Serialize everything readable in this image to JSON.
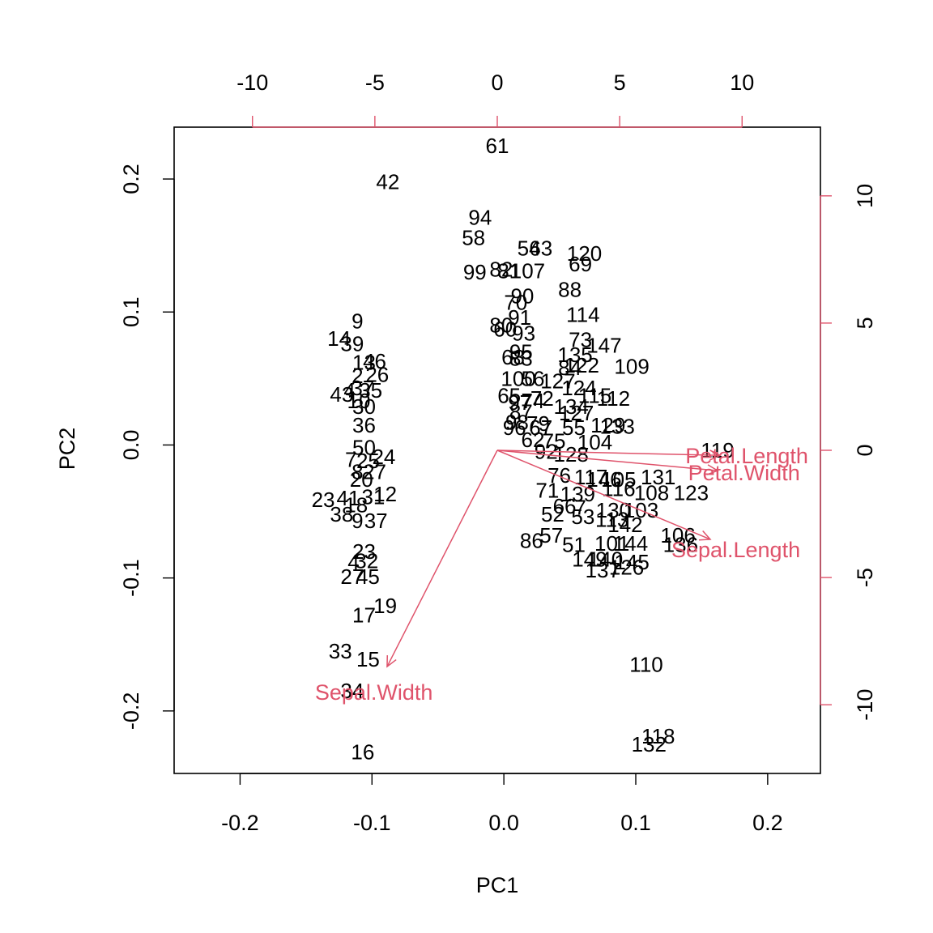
{
  "chart_data": {
    "type": "scatter",
    "subtype": "PCA biplot",
    "xlabel": "PC1",
    "ylabel": "PC2",
    "xlim": [
      -0.25,
      0.24
    ],
    "ylim": [
      -0.247,
      0.239
    ],
    "x_ticks": [
      -0.2,
      -0.1,
      0.0,
      0.1,
      0.2
    ],
    "x_tick_labels": [
      "-0.2",
      "-0.1",
      "0.0",
      "0.1",
      "0.2"
    ],
    "y_ticks": [
      -0.2,
      -0.1,
      0.0,
      0.1,
      0.2
    ],
    "y_tick_labels": [
      "-0.2",
      "-0.1",
      "0.0",
      "0.1",
      "0.2"
    ],
    "top_axis": {
      "ticks": [
        -10,
        -5,
        0,
        5,
        10
      ],
      "tick_labels": [
        "-10",
        "-5",
        "0",
        "5",
        "10"
      ],
      "range": [
        -13.2,
        13.2
      ]
    },
    "right_axis": {
      "ticks": [
        -10,
        -5,
        0,
        5,
        10
      ],
      "tick_labels": [
        "-10",
        "-5",
        "0",
        "5",
        "10"
      ],
      "range": [
        -12.7,
        12.7
      ]
    },
    "variable_color": "#DF536B",
    "observation_color": "#000000",
    "variables": [
      {
        "name": "Petal.Length",
        "x": 9.1,
        "y": -0.2
      },
      {
        "name": "Petal.Width",
        "x": 9.0,
        "y": -0.8
      },
      {
        "name": "Sepal.Length",
        "x": 8.7,
        "y": -3.5
      },
      {
        "name": "Sepal.Width",
        "x": -4.5,
        "y": -8.5
      }
    ],
    "observations": [
      {
        "label": "61",
        "x": -0.005,
        "y": 0.225
      },
      {
        "label": "42",
        "x": -0.088,
        "y": 0.198
      },
      {
        "label": "94",
        "x": -0.018,
        "y": 0.171
      },
      {
        "label": "58",
        "x": -0.023,
        "y": 0.156
      },
      {
        "label": "54",
        "x": 0.019,
        "y": 0.148
      },
      {
        "label": "63",
        "x": 0.028,
        "y": 0.148
      },
      {
        "label": "120",
        "x": 0.061,
        "y": 0.144
      },
      {
        "label": "69",
        "x": 0.058,
        "y": 0.136
      },
      {
        "label": "99",
        "x": -0.022,
        "y": 0.13
      },
      {
        "label": "82",
        "x": -0.002,
        "y": 0.132
      },
      {
        "label": "81",
        "x": 0.004,
        "y": 0.131
      },
      {
        "label": "107",
        "x": 0.018,
        "y": 0.131
      },
      {
        "label": "88",
        "x": 0.05,
        "y": 0.117
      },
      {
        "label": "90",
        "x": 0.014,
        "y": 0.112
      },
      {
        "label": "70",
        "x": 0.009,
        "y": 0.107
      },
      {
        "label": "114",
        "x": 0.06,
        "y": 0.098
      },
      {
        "label": "91",
        "x": 0.012,
        "y": 0.096
      },
      {
        "label": "9",
        "x": -0.111,
        "y": 0.093
      },
      {
        "label": "80",
        "x": -0.002,
        "y": 0.09
      },
      {
        "label": "60",
        "x": 0.001,
        "y": 0.087
      },
      {
        "label": "93",
        "x": 0.015,
        "y": 0.084
      },
      {
        "label": "14",
        "x": -0.125,
        "y": 0.08
      },
      {
        "label": "39",
        "x": -0.115,
        "y": 0.076
      },
      {
        "label": "73",
        "x": 0.058,
        "y": 0.079
      },
      {
        "label": "147",
        "x": 0.076,
        "y": 0.075
      },
      {
        "label": "95",
        "x": 0.013,
        "y": 0.07
      },
      {
        "label": "135",
        "x": 0.054,
        "y": 0.068
      },
      {
        "label": "68",
        "x": 0.007,
        "y": 0.066
      },
      {
        "label": "83",
        "x": 0.013,
        "y": 0.065
      },
      {
        "label": "13",
        "x": -0.106,
        "y": 0.062
      },
      {
        "label": "46",
        "x": -0.098,
        "y": 0.063
      },
      {
        "label": "109",
        "x": 0.097,
        "y": 0.059
      },
      {
        "label": "122",
        "x": 0.059,
        "y": 0.06
      },
      {
        "label": "84",
        "x": 0.05,
        "y": 0.058
      },
      {
        "label": "26",
        "x": -0.096,
        "y": 0.053
      },
      {
        "label": "2",
        "x": -0.111,
        "y": 0.052
      },
      {
        "label": "100",
        "x": 0.011,
        "y": 0.05
      },
      {
        "label": "56",
        "x": 0.022,
        "y": 0.05
      },
      {
        "label": "127",
        "x": 0.041,
        "y": 0.048
      },
      {
        "label": "4",
        "x": -0.117,
        "y": 0.041
      },
      {
        "label": "37",
        "x": -0.107,
        "y": 0.043
      },
      {
        "label": "35",
        "x": -0.101,
        "y": 0.041
      },
      {
        "label": "124",
        "x": 0.057,
        "y": 0.043
      },
      {
        "label": "65",
        "x": 0.004,
        "y": 0.037
      },
      {
        "label": "72",
        "x": 0.029,
        "y": 0.035
      },
      {
        "label": "115",
        "x": 0.069,
        "y": 0.037
      },
      {
        "label": "112",
        "x": 0.083,
        "y": 0.035
      },
      {
        "label": "97",
        "x": 0.012,
        "y": 0.032
      },
      {
        "label": "74",
        "x": 0.022,
        "y": 0.033
      },
      {
        "label": "134",
        "x": 0.051,
        "y": 0.029
      },
      {
        "label": "43",
        "x": -0.123,
        "y": 0.038
      },
      {
        "label": "10",
        "x": -0.11,
        "y": 0.033
      },
      {
        "label": "30",
        "x": -0.106,
        "y": 0.029
      },
      {
        "label": "87",
        "x": 0.013,
        "y": 0.025
      },
      {
        "label": "127",
        "x": 0.055,
        "y": 0.024
      },
      {
        "label": "36",
        "x": -0.106,
        "y": 0.015
      },
      {
        "label": "98",
        "x": 0.01,
        "y": 0.017
      },
      {
        "label": "79",
        "x": 0.026,
        "y": 0.016
      },
      {
        "label": "129",
        "x": 0.079,
        "y": 0.015
      },
      {
        "label": "133",
        "x": 0.086,
        "y": 0.014
      },
      {
        "label": "96",
        "x": 0.008,
        "y": 0.013
      },
      {
        "label": "67",
        "x": 0.028,
        "y": 0.013
      },
      {
        "label": "55",
        "x": 0.053,
        "y": 0.013
      },
      {
        "label": "62",
        "x": 0.022,
        "y": 0.004
      },
      {
        "label": "75",
        "x": 0.038,
        "y": 0.003
      },
      {
        "label": "104",
        "x": 0.069,
        "y": 0.002
      },
      {
        "label": "50",
        "x": -0.106,
        "y": -0.002
      },
      {
        "label": "24",
        "x": -0.091,
        "y": -0.009
      },
      {
        "label": "92",
        "x": 0.032,
        "y": -0.005
      },
      {
        "label": "128",
        "x": 0.051,
        "y": -0.007
      },
      {
        "label": "119",
        "x": 0.162,
        "y": -0.004
      },
      {
        "label": "7",
        "x": -0.116,
        "y": -0.011
      },
      {
        "label": "25",
        "x": -0.103,
        "y": -0.012
      },
      {
        "label": "8",
        "x": -0.111,
        "y": -0.02
      },
      {
        "label": "27",
        "x": -0.098,
        "y": -0.02
      },
      {
        "label": "76",
        "x": 0.042,
        "y": -0.023
      },
      {
        "label": "117",
        "x": 0.066,
        "y": -0.024
      },
      {
        "label": "146",
        "x": 0.076,
        "y": -0.026
      },
      {
        "label": "105",
        "x": 0.087,
        "y": -0.026
      },
      {
        "label": "131",
        "x": 0.117,
        "y": -0.024
      },
      {
        "label": "20",
        "x": -0.108,
        "y": -0.026
      },
      {
        "label": "71",
        "x": 0.033,
        "y": -0.034
      },
      {
        "label": "139",
        "x": 0.056,
        "y": -0.037
      },
      {
        "label": "116",
        "x": 0.087,
        "y": -0.033
      },
      {
        "label": "108",
        "x": 0.112,
        "y": -0.036
      },
      {
        "label": "123",
        "x": 0.142,
        "y": -0.036
      },
      {
        "label": "23",
        "x": -0.137,
        "y": -0.041
      },
      {
        "label": "41",
        "x": -0.118,
        "y": -0.04
      },
      {
        "label": "31",
        "x": -0.099,
        "y": -0.039
      },
      {
        "label": "12",
        "x": -0.09,
        "y": -0.037
      },
      {
        "label": "18",
        "x": -0.112,
        "y": -0.045
      },
      {
        "label": "66",
        "x": 0.046,
        "y": -0.046
      },
      {
        "label": "7",
        "x": 0.058,
        "y": -0.047
      },
      {
        "label": "130",
        "x": 0.083,
        "y": -0.049
      },
      {
        "label": "103",
        "x": 0.104,
        "y": -0.049
      },
      {
        "label": "38",
        "x": -0.123,
        "y": -0.052
      },
      {
        "label": "52",
        "x": 0.037,
        "y": -0.052
      },
      {
        "label": "53",
        "x": 0.06,
        "y": -0.054
      },
      {
        "label": "113",
        "x": 0.082,
        "y": -0.056
      },
      {
        "label": "9",
        "x": -0.111,
        "y": -0.057
      },
      {
        "label": "37",
        "x": -0.097,
        "y": -0.057
      },
      {
        "label": "142",
        "x": 0.092,
        "y": -0.06
      },
      {
        "label": "86",
        "x": 0.021,
        "y": -0.072
      },
      {
        "label": "57",
        "x": 0.036,
        "y": -0.068
      },
      {
        "label": "51",
        "x": 0.053,
        "y": -0.075
      },
      {
        "label": "101",
        "x": 0.082,
        "y": -0.074
      },
      {
        "label": "144",
        "x": 0.096,
        "y": -0.074
      },
      {
        "label": "106",
        "x": 0.132,
        "y": -0.068
      },
      {
        "label": "136",
        "x": 0.134,
        "y": -0.075
      },
      {
        "label": "23",
        "x": -0.106,
        "y": -0.08
      },
      {
        "label": "4",
        "x": -0.114,
        "y": -0.088
      },
      {
        "label": "32",
        "x": -0.104,
        "y": -0.087
      },
      {
        "label": "149",
        "x": 0.065,
        "y": -0.086
      },
      {
        "label": "140",
        "x": 0.077,
        "y": -0.086
      },
      {
        "label": "145",
        "x": 0.097,
        "y": -0.088
      },
      {
        "label": "137",
        "x": 0.075,
        "y": -0.094
      },
      {
        "label": "126",
        "x": 0.093,
        "y": -0.092
      },
      {
        "label": "27",
        "x": -0.115,
        "y": -0.099
      },
      {
        "label": "45",
        "x": -0.103,
        "y": -0.099
      },
      {
        "label": "19",
        "x": -0.09,
        "y": -0.121
      },
      {
        "label": "17",
        "x": -0.106,
        "y": -0.128
      },
      {
        "label": "33",
        "x": -0.124,
        "y": -0.155
      },
      {
        "label": "15",
        "x": -0.103,
        "y": -0.161
      },
      {
        "label": "110",
        "x": 0.108,
        "y": -0.165
      },
      {
        "label": "34",
        "x": -0.115,
        "y": -0.185
      },
      {
        "label": "118",
        "x": 0.117,
        "y": -0.219
      },
      {
        "label": "132",
        "x": 0.11,
        "y": -0.225
      },
      {
        "label": "16",
        "x": -0.107,
        "y": -0.231
      }
    ]
  }
}
